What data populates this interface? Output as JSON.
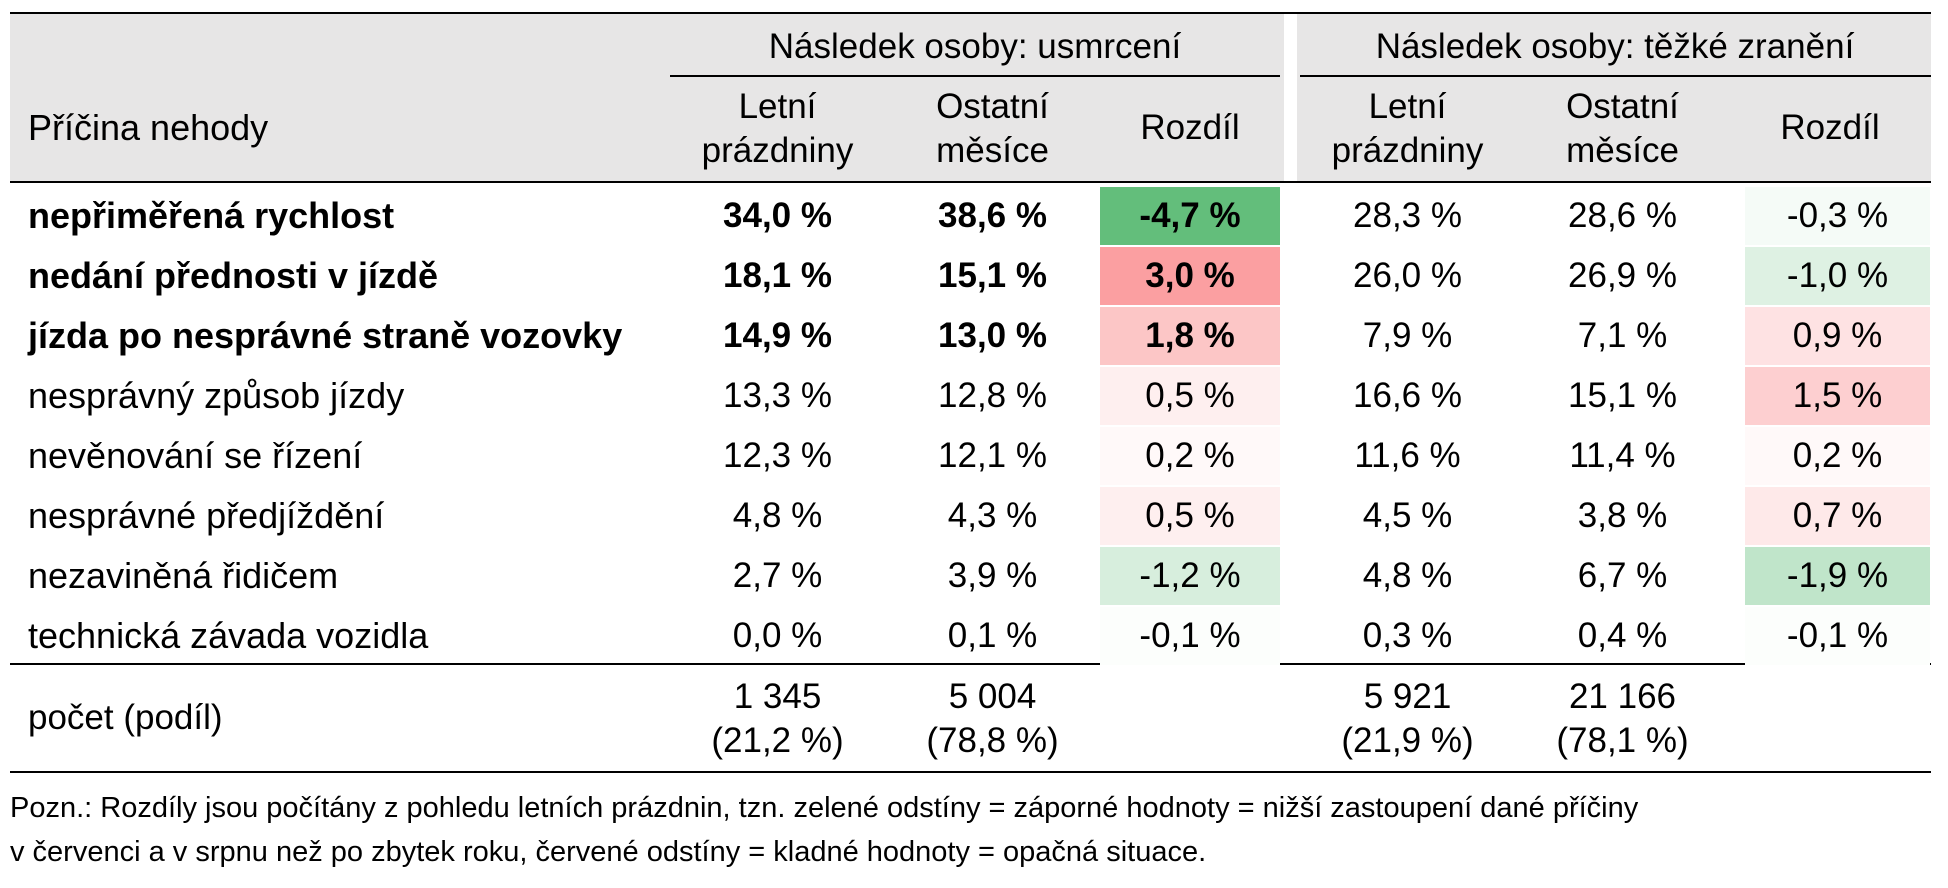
{
  "table": {
    "group_headers": {
      "fatal": "Následek osoby: usmrcení",
      "serious": "Následek osoby: těžké zranění"
    },
    "col_header_cause": "Příčina nehody",
    "sub_headers": {
      "summer_l1": "Letní",
      "summer_l2": "prázdniny",
      "other_l1": "Ostatní",
      "other_l2": "měsíce",
      "diff": "Rozdíl"
    },
    "rows": [
      {
        "cause": "nepřiměřená rychlost",
        "bold": true,
        "f_summer": "34,0 %",
        "f_other": "38,6 %",
        "f_diff": "-4,7 %",
        "f_diff_value": -4.7,
        "s_summer": "28,3 %",
        "s_other": "28,6 %",
        "s_diff": "-0,3 %",
        "s_diff_value": -0.3
      },
      {
        "cause": "nedání přednosti v jízdě",
        "bold": true,
        "f_summer": "18,1 %",
        "f_other": "15,1 %",
        "f_diff": "3,0 %",
        "f_diff_value": 3.0,
        "s_summer": "26,0 %",
        "s_other": "26,9 %",
        "s_diff": "-1,0 %",
        "s_diff_value": -1.0
      },
      {
        "cause": "jízda po nesprávné straně vozovky",
        "bold": true,
        "f_summer": "14,9 %",
        "f_other": "13,0 %",
        "f_diff": "1,8 %",
        "f_diff_value": 1.8,
        "s_summer": "7,9 %",
        "s_other": "7,1 %",
        "s_diff": "0,9 %",
        "s_diff_value": 0.9
      },
      {
        "cause": "nesprávný způsob jízdy",
        "bold": false,
        "f_summer": "13,3 %",
        "f_other": "12,8 %",
        "f_diff": "0,5 %",
        "f_diff_value": 0.5,
        "s_summer": "16,6 %",
        "s_other": "15,1 %",
        "s_diff": "1,5 %",
        "s_diff_value": 1.5
      },
      {
        "cause": "nevěnování se řízení",
        "bold": false,
        "f_summer": "12,3 %",
        "f_other": "12,1 %",
        "f_diff": "0,2 %",
        "f_diff_value": 0.2,
        "s_summer": "11,6 %",
        "s_other": "11,4 %",
        "s_diff": "0,2 %",
        "s_diff_value": 0.2
      },
      {
        "cause": "nesprávné předjíždění",
        "bold": false,
        "f_summer": "4,8 %",
        "f_other": "4,3 %",
        "f_diff": "0,5 %",
        "f_diff_value": 0.5,
        "s_summer": "4,5 %",
        "s_other": "3,8 %",
        "s_diff": "0,7 %",
        "s_diff_value": 0.7
      },
      {
        "cause": "nezaviněná řidičem",
        "bold": false,
        "f_summer": "2,7 %",
        "f_other": "3,9 %",
        "f_diff": "-1,2 %",
        "f_diff_value": -1.2,
        "s_summer": "4,8 %",
        "s_other": "6,7 %",
        "s_diff": "-1,9 %",
        "s_diff_value": -1.9
      },
      {
        "cause": "technická závada vozidla",
        "bold": false,
        "f_summer": "0,0 %",
        "f_other": "0,1 %",
        "f_diff": "-0,1 %",
        "f_diff_value": -0.1,
        "s_summer": "0,3 %",
        "s_other": "0,4 %",
        "s_diff": "-0,1 %",
        "s_diff_value": -0.1
      }
    ],
    "count_row": {
      "label": "počet (podíl)",
      "f_summer_count": "1 345",
      "f_summer_share": "(21,2 %)",
      "f_other_count": "5 004",
      "f_other_share": "(78,8 %)",
      "s_summer_count": "5 921",
      "s_summer_share": "(21,9 %)",
      "s_other_count": "21 166",
      "s_other_share": "(78,1 %)"
    }
  },
  "note": {
    "line1": "Pozn.: Rozdíly jsou počítány z pohledu letních prázdnin, tzn. zelené odstíny = záporné hodnoty = nižší zastoupení dané příčiny",
    "line2": "v červenci a v srpnu než po zbytek roku, červené odstíny = kladné hodnoty = opačná situace."
  },
  "colors": {
    "header_bg": "#e7e6e6",
    "green_strong": "#63be7b",
    "red_strong": "#f8696b"
  }
}
